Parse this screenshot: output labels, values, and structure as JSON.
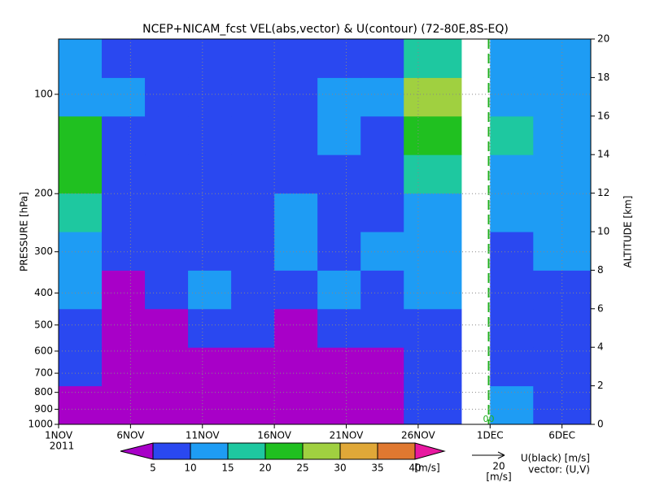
{
  "chart_data": {
    "type": "contour",
    "title": "NCEP+NICAM_fcst VEL(abs,vector) & U(contour)  (72-80E,8S-EQ)",
    "xlim": [
      0,
      37
    ],
    "xticks": [
      {
        "value": 0,
        "label": "1NOV"
      },
      {
        "value": 5,
        "label": "6NOV"
      },
      {
        "value": 10,
        "label": "11NOV"
      },
      {
        "value": 15,
        "label": "16NOV"
      },
      {
        "value": 20,
        "label": "21NOV"
      },
      {
        "value": 25,
        "label": "26NOV"
      },
      {
        "value": 30,
        "label": "1DEC"
      },
      {
        "value": 35,
        "label": "6DEC"
      }
    ],
    "x_sublabel": "2011",
    "ylabel": "PRESSURE [hPa]",
    "yscale": "log",
    "ylim": [
      1000,
      68
    ],
    "yticks": [
      100,
      200,
      300,
      400,
      500,
      600,
      700,
      800,
      900,
      1000
    ],
    "y2label": "ALTITUDE [km]",
    "y2lim": [
      0,
      20
    ],
    "y2ticks": [
      0,
      2,
      4,
      6,
      8,
      10,
      12,
      14,
      16,
      18,
      20
    ],
    "grid": true,
    "annotation": "00",
    "annotation_x": 29.9,
    "field": {
      "x_edges": [
        0,
        3,
        6,
        9,
        12,
        15,
        18,
        21,
        24,
        28,
        30,
        33,
        37
      ],
      "y2_edges": [
        0,
        2,
        4,
        6,
        8,
        10,
        12,
        14,
        16,
        18,
        20
      ],
      "values": [
        [
          4,
          3,
          3,
          4,
          3,
          4,
          3,
          4,
          7,
          null,
          12,
          8
        ],
        [
          6,
          3,
          3,
          4,
          4,
          3,
          4,
          4,
          7,
          null,
          9,
          8
        ],
        [
          8,
          3,
          4,
          6,
          7,
          4,
          7,
          6,
          8,
          null,
          8,
          6
        ],
        [
          12,
          4,
          6,
          11,
          8,
          8,
          10,
          9,
          12,
          null,
          7,
          6
        ],
        [
          14,
          8,
          7,
          9,
          6,
          12,
          9,
          14,
          10,
          null,
          9,
          12
        ],
        [
          18,
          9,
          8,
          9,
          7,
          14,
          9,
          8,
          10,
          null,
          12,
          11
        ],
        [
          20,
          8,
          9,
          8,
          9,
          8,
          8,
          7,
          16,
          null,
          14,
          12
        ],
        [
          20,
          8,
          9,
          7,
          6,
          8,
          12,
          9,
          24,
          null,
          16,
          14
        ],
        [
          14,
          10,
          5,
          7,
          8,
          9,
          13,
          10,
          27,
          null,
          12,
          14
        ],
        [
          12,
          8,
          7,
          6,
          5,
          9,
          9,
          8,
          18,
          null,
          11,
          12
        ]
      ]
    },
    "colorbar": {
      "levels": [
        5,
        10,
        15,
        20,
        25,
        30,
        35,
        40
      ],
      "colors": [
        "#a800c8",
        "#2a48f0",
        "#1e9cf4",
        "#1ec8a0",
        "#20c020",
        "#a0d040",
        "#e0a838",
        "#e07830",
        "#e818a0"
      ],
      "label": "[m/s]"
    },
    "vector_legend": {
      "reference": "20",
      "unit": "[m/s]",
      "contour_label": "U(black) [m/s]",
      "vector_label": "vector: (U,V)"
    }
  }
}
